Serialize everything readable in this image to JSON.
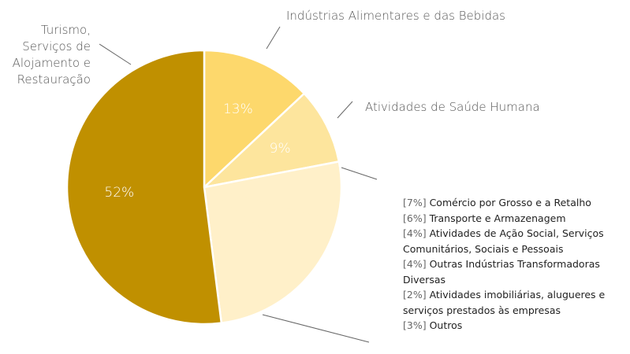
{
  "chart_data": {
    "type": "pie",
    "categories": [
      "Turismo, Serviços de Alojamento e Restauração",
      "Indústrias Alimentares e das Bebidas",
      "Atividades de Saúde Humana"
    ],
    "values": [
      52,
      13,
      9
    ],
    "value_labels": [
      "52%",
      "13%",
      "9%"
    ],
    "colors": [
      "#c09000",
      "#fdd86c",
      "#fde59d"
    ],
    "other_color": "#fff0c9",
    "other_categories": [
      "Comércio por Grosso e a Retalho",
      "Transporte e Armazenagem",
      "Atividades de Ação Social, Serviços Comunitários, Sociais e Pessoais",
      "Outras Indústrias Transformadoras Diversas",
      "Atividades imobiliárias, alugueres e serviços prestados às empresas",
      "Outros"
    ],
    "other_values": [
      7,
      6,
      4,
      4,
      2,
      3
    ],
    "other_value_labels": [
      "[7%]",
      "[6%]",
      "[4%]",
      "[4%]",
      "[2%]",
      "[3%]"
    ]
  }
}
